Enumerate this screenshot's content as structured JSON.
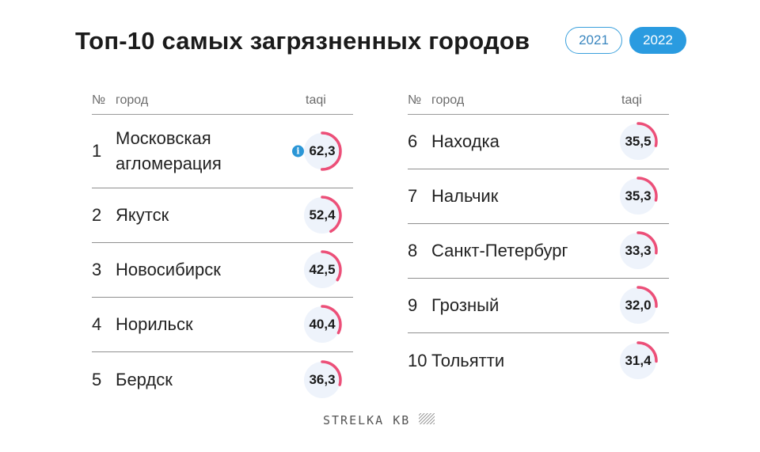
{
  "title": "Топ-10 самых загрязненных городов",
  "years": [
    {
      "label": "2021",
      "active": false
    },
    {
      "label": "2022",
      "active": true
    }
  ],
  "columns": {
    "num": "№",
    "city": "город",
    "metric": "taqi"
  },
  "left_rows": [
    {
      "rank": "1",
      "city": "Московская агломерация",
      "value": "62,3",
      "level": 62.3,
      "info": "i"
    },
    {
      "rank": "2",
      "city": "Якутск",
      "value": "52,4",
      "level": 52.4
    },
    {
      "rank": "3",
      "city": "Новосибирск",
      "value": "42,5",
      "level": 42.5
    },
    {
      "rank": "4",
      "city": "Норильск",
      "value": "40,4",
      "level": 40.4
    },
    {
      "rank": "5",
      "city": "Бердск",
      "value": "36,3",
      "level": 36.3
    }
  ],
  "right_rows": [
    {
      "rank": "6",
      "city": "Находка",
      "value": "35,5",
      "level": 35.5
    },
    {
      "rank": "7",
      "city": "Нальчик",
      "value": "35,3",
      "level": 35.3
    },
    {
      "rank": "8",
      "city": "Санкт-Петербург",
      "value": "33,3",
      "level": 33.3
    },
    {
      "rank": "9",
      "city": "Грозный",
      "value": "32,0",
      "level": 32.0
    },
    {
      "rank": "10",
      "city": "Тольятти",
      "value": "31,4",
      "level": 31.4
    }
  ],
  "footer": {
    "brand": "STRELKA KB",
    "logo_icon": "hatched-square-icon"
  },
  "colors": {
    "accent": "#2a9be0",
    "gauge": "#ec4f78",
    "gauge_bg": "#eef3fb"
  }
}
